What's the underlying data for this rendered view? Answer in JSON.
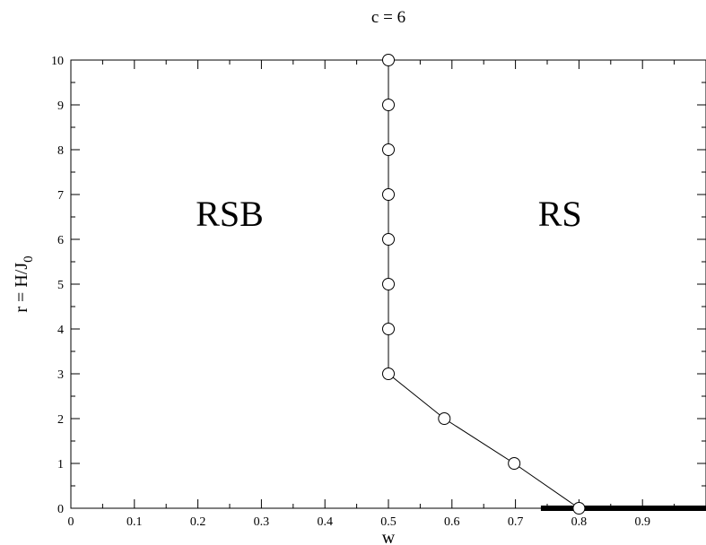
{
  "chart_data": {
    "type": "scatter",
    "title": "c = 6",
    "xlabel": "w",
    "ylabel_main": "r = H/J",
    "ylabel_sub": "0",
    "xlim": [
      0,
      1
    ],
    "ylim": [
      0,
      10
    ],
    "xticks": [
      0,
      0.1,
      0.2,
      0.3,
      0.4,
      0.5,
      0.6,
      0.7,
      0.8,
      0.9
    ],
    "xtick_labels": [
      "0",
      "0.1",
      "0.2",
      "0.3",
      "0.4",
      "0.5",
      "0.6",
      "0.7",
      "0.8",
      "0.9"
    ],
    "yticks": [
      0,
      1,
      2,
      3,
      4,
      5,
      6,
      7,
      8,
      9,
      10
    ],
    "ytick_labels": [
      "0",
      "1",
      "2",
      "3",
      "4",
      "5",
      "6",
      "7",
      "8",
      "9",
      "10"
    ],
    "grid": false,
    "series": [
      {
        "x": [
          0.8,
          0.698,
          0.588,
          0.5,
          0.5,
          0.5,
          0.5,
          0.5,
          0.5,
          0.5,
          0.5
        ],
        "y": [
          0,
          1,
          2,
          3,
          4,
          5,
          6,
          7,
          8,
          9,
          10
        ],
        "marker": "open-circle",
        "color": "#000000"
      }
    ],
    "thick_segment": {
      "x": [
        0.74,
        1.0
      ],
      "y": [
        0,
        0
      ],
      "color": "#000000"
    },
    "annotations": [
      {
        "text": "RSB",
        "x": 0.25,
        "y": 6.3
      },
      {
        "text": "RS",
        "x": 0.77,
        "y": 6.3
      }
    ]
  }
}
